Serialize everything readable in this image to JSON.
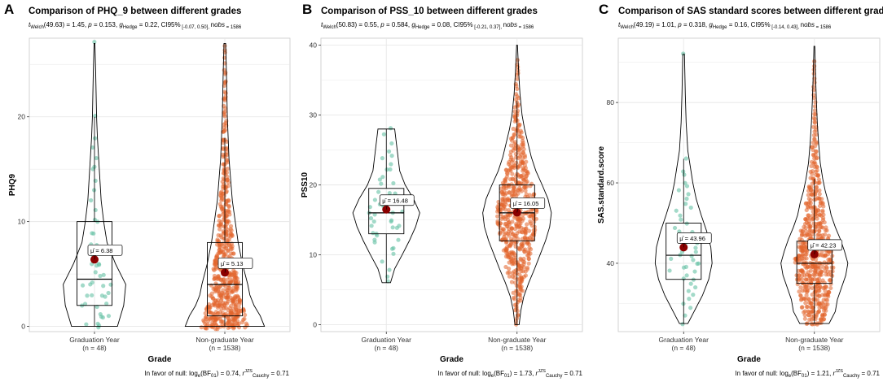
{
  "colors": {
    "grad_points": "#66c2a5",
    "nongrad_points": "#e1652c",
    "mean_point": "#8b0000",
    "grid": "#e8e8e8",
    "panel_border": "#c8c8c8"
  },
  "chart_data": [
    {
      "type": "violin-box",
      "panel_label": "A",
      "title": "Comparison of PHQ_9 between different grades",
      "subtitle_parts": [
        "t",
        "Welch",
        "(49.63) = 1.45, ",
        "p",
        " = 0.153, ",
        "g",
        "Hedge",
        " = 0.22, CI",
        "95%",
        " [-0.07, 0.50], ",
        "n",
        "obs",
        " = 1586"
      ],
      "footer_parts": [
        "In favor of null: log",
        "e",
        "(BF",
        "01",
        ") = 0.74, ",
        "r",
        "JZS",
        "Cauchy",
        " = 0.71"
      ],
      "ylabel": "PHQ9",
      "xlabel": "Grade",
      "ylim": [
        -0.5,
        27.5
      ],
      "yticks": [
        0,
        10,
        20
      ],
      "groups": [
        {
          "name": "Graduation Year",
          "n_label": "(n = 48)",
          "n": 48,
          "box": {
            "q1": 2,
            "median": 4.5,
            "q3": 10,
            "whisker_low": 0,
            "whisker_high": 20
          },
          "mean": 6.38,
          "mean_label": "μ̂ = 6.38",
          "violin_range": [
            0,
            27
          ],
          "violin_profile": [
            [
              0,
              0.55
            ],
            [
              2,
              0.7
            ],
            [
              4,
              0.75
            ],
            [
              6,
              0.5
            ],
            [
              8,
              0.3
            ],
            [
              10,
              0.22
            ],
            [
              12,
              0.16
            ],
            [
              14,
              0.13
            ],
            [
              16,
              0.1
            ],
            [
              18,
              0.07
            ],
            [
              20,
              0.05
            ],
            [
              24,
              0.03
            ],
            [
              27,
              0.01
            ]
          ],
          "points": [
            0,
            0,
            0,
            0,
            1,
            1,
            1,
            2,
            2,
            2,
            2,
            3,
            3,
            3,
            3,
            3,
            4,
            4,
            4,
            4,
            4,
            5,
            5,
            5,
            6,
            6,
            6,
            6,
            7,
            7,
            8,
            8,
            9,
            9,
            10,
            10,
            11,
            12,
            13,
            14,
            15,
            15,
            16,
            17,
            18,
            20,
            27,
            1
          ]
        },
        {
          "name": "Non-graduate Year",
          "n_label": "(n = 1538)",
          "n": 1538,
          "box": {
            "q1": 1,
            "median": 4,
            "q3": 8,
            "whisker_low": 0,
            "whisker_high": 18
          },
          "mean": 5.13,
          "mean_label": "μ̂ = 5.13",
          "violin_range": [
            0,
            27
          ],
          "violin_profile": [
            [
              0,
              0.95
            ],
            [
              1,
              0.85
            ],
            [
              2,
              0.7
            ],
            [
              3,
              0.6
            ],
            [
              4,
              0.55
            ],
            [
              6,
              0.42
            ],
            [
              8,
              0.32
            ],
            [
              10,
              0.25
            ],
            [
              12,
              0.18
            ],
            [
              14,
              0.14
            ],
            [
              16,
              0.1
            ],
            [
              18,
              0.08
            ],
            [
              20,
              0.06
            ],
            [
              22,
              0.05
            ],
            [
              24,
              0.04
            ],
            [
              27,
              0.02
            ]
          ],
          "points": []
        }
      ]
    },
    {
      "type": "violin-box",
      "panel_label": "B",
      "title": "Comparison of PSS_10 between different grades",
      "subtitle_parts": [
        "t",
        "Welch",
        "(50.83) = 0.55, ",
        "p",
        " = 0.584, ",
        "g",
        "Hedge",
        " = 0.08, CI",
        "95%",
        " [-0.21, 0.37], ",
        "n",
        "obs",
        " = 1586"
      ],
      "footer_parts": [
        "In favor of null: log",
        "e",
        "(BF",
        "01",
        ") = 1.73, ",
        "r",
        "JZS",
        "Cauchy",
        " = 0.71"
      ],
      "ylabel": "PSS10",
      "xlabel": "Grade",
      "ylim": [
        -1,
        41
      ],
      "yticks": [
        0,
        10,
        20,
        30,
        40
      ],
      "groups": [
        {
          "name": "Graduation Year",
          "n_label": "(n = 48)",
          "n": 48,
          "box": {
            "q1": 13,
            "median": 16,
            "q3": 19.5,
            "whisker_low": 6,
            "whisker_high": 28
          },
          "mean": 16.48,
          "mean_label": "μ̂ = 16.48",
          "violin_range": [
            6,
            28
          ],
          "violin_profile": [
            [
              6,
              0.1
            ],
            [
              8,
              0.2
            ],
            [
              10,
              0.38
            ],
            [
              12,
              0.55
            ],
            [
              14,
              0.7
            ],
            [
              16,
              0.8
            ],
            [
              18,
              0.65
            ],
            [
              20,
              0.45
            ],
            [
              22,
              0.32
            ],
            [
              24,
              0.28
            ],
            [
              26,
              0.24
            ],
            [
              28,
              0.2
            ]
          ],
          "points": [
            6,
            7,
            8,
            9,
            10,
            11,
            11,
            12,
            12,
            13,
            13,
            13,
            14,
            14,
            14,
            15,
            15,
            15,
            15,
            16,
            16,
            16,
            16,
            17,
            17,
            17,
            18,
            18,
            18,
            19,
            19,
            19,
            20,
            20,
            21,
            21,
            22,
            22,
            23,
            24,
            24,
            25,
            26,
            27,
            28,
            12,
            14,
            17
          ]
        },
        {
          "name": "Non-graduate Year",
          "n_label": "(n = 1538)",
          "n": 1538,
          "box": {
            "q1": 12,
            "median": 16,
            "q3": 20,
            "whisker_low": 0,
            "whisker_high": 32
          },
          "mean": 16.05,
          "mean_label": "μ̂ = 16.05",
          "violin_range": [
            0,
            40
          ],
          "violin_profile": [
            [
              0,
              0.05
            ],
            [
              2,
              0.09
            ],
            [
              4,
              0.16
            ],
            [
              6,
              0.28
            ],
            [
              8,
              0.42
            ],
            [
              10,
              0.55
            ],
            [
              12,
              0.68
            ],
            [
              14,
              0.78
            ],
            [
              16,
              0.82
            ],
            [
              18,
              0.74
            ],
            [
              20,
              0.6
            ],
            [
              22,
              0.45
            ],
            [
              24,
              0.34
            ],
            [
              26,
              0.26
            ],
            [
              28,
              0.18
            ],
            [
              30,
              0.12
            ],
            [
              33,
              0.07
            ],
            [
              36,
              0.04
            ],
            [
              40,
              0.01
            ]
          ],
          "points": []
        }
      ]
    },
    {
      "type": "violin-box",
      "panel_label": "C",
      "title": "Comparison of SAS standard scores between different grades",
      "subtitle_parts": [
        "t",
        "Welch",
        "(49.19) = 1.01, ",
        "p",
        " = 0.318, ",
        "g",
        "Hedge",
        " = 0.16, CI",
        "95%",
        " [-0.14, 0.43], ",
        "n",
        "obs",
        " = 1586"
      ],
      "footer_parts": [
        "In favor of null: log",
        "e",
        "(BF",
        "01",
        ") = 1.21, ",
        "r",
        "JZS",
        "Cauchy",
        " = 0.71"
      ],
      "ylabel": "SAS.standard.score",
      "xlabel": "Grade",
      "ylim": [
        23,
        96
      ],
      "yticks": [
        40,
        60,
        80
      ],
      "groups": [
        {
          "name": "Graduation Year",
          "n_label": "(n = 48)",
          "n": 48,
          "box": {
            "q1": 36,
            "median": 42,
            "q3": 50,
            "whisker_low": 25,
            "whisker_high": 66
          },
          "mean": 43.96,
          "mean_label": "μ̂ = 43.96",
          "violin_range": [
            25,
            92
          ],
          "violin_profile": [
            [
              25,
              0.1
            ],
            [
              28,
              0.25
            ],
            [
              32,
              0.45
            ],
            [
              36,
              0.6
            ],
            [
              40,
              0.68
            ],
            [
              44,
              0.65
            ],
            [
              48,
              0.55
            ],
            [
              52,
              0.42
            ],
            [
              56,
              0.3
            ],
            [
              60,
              0.22
            ],
            [
              64,
              0.16
            ],
            [
              68,
              0.1
            ],
            [
              75,
              0.06
            ],
            [
              82,
              0.04
            ],
            [
              92,
              0.02
            ]
          ],
          "points": [
            25,
            27,
            29,
            31,
            32,
            33,
            34,
            35,
            36,
            36,
            37,
            38,
            38,
            39,
            40,
            40,
            41,
            41,
            42,
            42,
            43,
            43,
            44,
            45,
            45,
            46,
            47,
            48,
            48,
            49,
            50,
            51,
            52,
            53,
            54,
            55,
            56,
            57,
            58,
            59,
            60,
            62,
            63,
            66,
            92,
            30,
            39,
            46
          ]
        },
        {
          "name": "Non-graduate Year",
          "n_label": "(n = 1538)",
          "n": 1538,
          "box": {
            "q1": 35,
            "median": 40,
            "q3": 45.5,
            "whisker_low": 25,
            "whisker_high": 61
          },
          "mean": 42.23,
          "mean_label": "μ̂ = 42.23",
          "violin_range": [
            25,
            94
          ],
          "violin_profile": [
            [
              25,
              0.35
            ],
            [
              28,
              0.5
            ],
            [
              31,
              0.55
            ],
            [
              34,
              0.65
            ],
            [
              37,
              0.75
            ],
            [
              40,
              0.8
            ],
            [
              43,
              0.72
            ],
            [
              46,
              0.62
            ],
            [
              49,
              0.5
            ],
            [
              52,
              0.4
            ],
            [
              55,
              0.34
            ],
            [
              58,
              0.26
            ],
            [
              61,
              0.2
            ],
            [
              65,
              0.14
            ],
            [
              70,
              0.1
            ],
            [
              75,
              0.07
            ],
            [
              80,
              0.05
            ],
            [
              86,
              0.03
            ],
            [
              94,
              0.01
            ]
          ],
          "points": []
        }
      ]
    }
  ]
}
